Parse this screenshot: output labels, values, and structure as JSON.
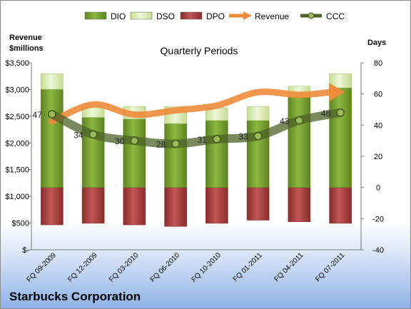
{
  "company": "Starbucks Corporation",
  "chart_data": {
    "type": "bar",
    "title": "Quarterly Periods",
    "y_left_label_line1": "Revenue",
    "y_left_label_line2": "$millions",
    "y_right_label": "Days",
    "categories": [
      "FQ 09-2009",
      "FQ 12-2009",
      "FQ 03-2010",
      "FQ 06-2010",
      "FQ 10-2010",
      "FQ 01-2011",
      "FQ 04-2011",
      "FQ 07-2011"
    ],
    "left_axis": {
      "min": 0,
      "max": 3500,
      "step": 500,
      "tick_labels": [
        "$-",
        "$500",
        "$1,000",
        "$1,500",
        "$2,000",
        "$2,500",
        "$3,000",
        "$3,500"
      ]
    },
    "right_axis": {
      "min": -40,
      "max": 80,
      "step": 20,
      "tick_labels": [
        "-40",
        "-20",
        "0",
        "20",
        "40",
        "60",
        "80"
      ]
    },
    "legend_position": "top",
    "series": [
      {
        "name": "DIO",
        "kind": "stacked-bar",
        "axis": "right",
        "color": "#77a032",
        "values": [
          63,
          45,
          44,
          41,
          43,
          43,
          58,
          64
        ]
      },
      {
        "name": "DSO",
        "kind": "stacked-bar",
        "axis": "right",
        "color": "#d8eab4",
        "values": [
          10,
          7,
          8,
          11,
          8,
          9,
          7,
          9
        ]
      },
      {
        "name": "DPO",
        "kind": "stacked-bar-negative",
        "axis": "right",
        "color": "#a53c3c",
        "values": [
          -24,
          -23,
          -24,
          -25,
          -23,
          -21,
          -22,
          -23
        ]
      },
      {
        "name": "Revenue",
        "kind": "arrow-line",
        "axis": "left",
        "color": "#ee8b3a",
        "values": [
          2400,
          2720,
          2530,
          2610,
          2700,
          2950,
          2900,
          2950
        ]
      },
      {
        "name": "CCC",
        "kind": "line-markers",
        "axis": "right",
        "color": "#4f6228",
        "values": [
          47,
          34,
          30,
          28,
          31,
          33,
          43,
          48
        ]
      }
    ],
    "data_labels": [
      "47",
      "34",
      "30",
      "28",
      "31",
      "33",
      "43",
      "48"
    ]
  }
}
